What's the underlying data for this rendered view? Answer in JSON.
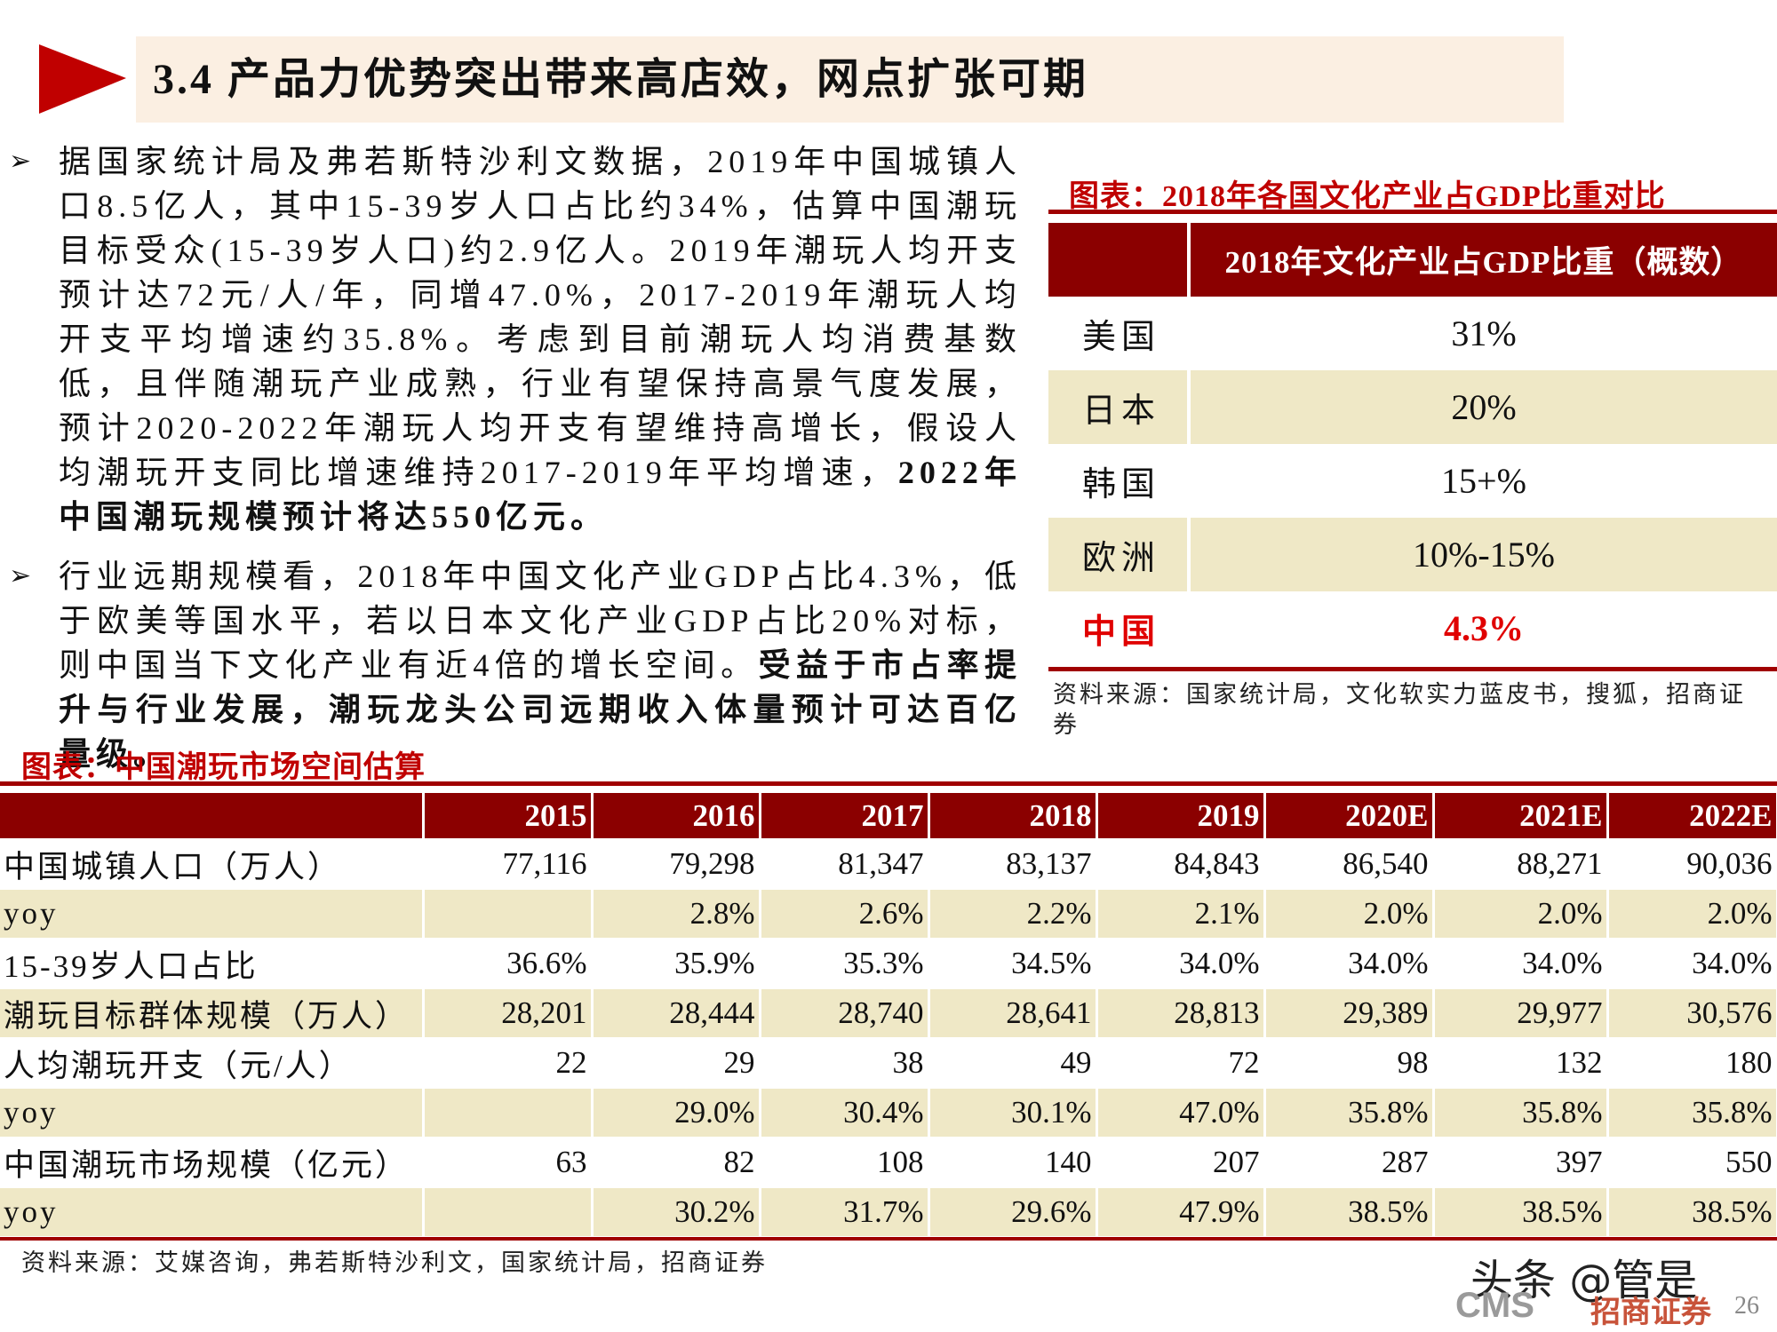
{
  "header": {
    "title": "3.4 产品力优势突出带来高店效，网点扩张可期"
  },
  "bullets": [
    {
      "text": "据国家统计局及弗若斯特沙利文数据，2019年中国城镇人口8.5亿人，其中15-39岁人口占比约34%，估算中国潮玩目标受众(15-39岁人口)约2.9亿人。2019年潮玩人均开支预计达72元/人/年，同增47.0%，2017-2019年潮玩人均开支平均增速约35.8%。考虑到目前潮玩人均消费基数低，且伴随潮玩产业成熟，行业有望保持高景气度发展，预计2020-2022年潮玩人均开支有望维持高增长，假设人均潮玩开支同比增速维持2017-2019年平均增速，",
      "emphasis": "2022年中国潮玩规模预计将达550亿元。"
    },
    {
      "text": "行业远期规模看，2018年中国文化产业GDP占比4.3%，低于欧美等国水平，若以日本文化产业GDP占比20%对标，则中国当下文化产业有近4倍的增长空间。",
      "emphasis": "受益于市占率提升与行业发展，潮玩龙头公司远期收入体量预计可达百亿量级。"
    }
  ],
  "gdp_table": {
    "title": "图表：2018年各国文化产业占GDP比重对比",
    "header": "2018年文化产业占GDP比重（概数）",
    "rows": [
      [
        "美国",
        "31%"
      ],
      [
        "日本",
        "20%"
      ],
      [
        "韩国",
        "15+%"
      ],
      [
        "欧洲",
        "10%-15%"
      ],
      [
        "中国",
        "4.3%"
      ]
    ],
    "source": "资料来源：国家统计局，文化软实力蓝皮书，搜狐，招商证券"
  },
  "market_table": {
    "title": "图表：中国潮玩市场空间估算",
    "columns": [
      "2015",
      "2016",
      "2017",
      "2018",
      "2019",
      "2020E",
      "2021E",
      "2022E"
    ],
    "rows": [
      {
        "label": "中国城镇人口（万人）",
        "cells": [
          "77,116",
          "79,298",
          "81,347",
          "83,137",
          "84,843",
          "86,540",
          "88,271",
          "90,036"
        ]
      },
      {
        "label": "yoy",
        "cells": [
          null,
          "2.8%",
          "2.6%",
          "2.2%",
          "2.1%",
          "2.0%",
          "2.0%",
          "2.0%"
        ]
      },
      {
        "label": "15-39岁人口占比",
        "cells": [
          "36.6%",
          "35.9%",
          "35.3%",
          "34.5%",
          "34.0%",
          "34.0%",
          "34.0%",
          "34.0%"
        ]
      },
      {
        "label": "潮玩目标群体规模（万人）",
        "cells": [
          "28,201",
          "28,444",
          "28,740",
          "28,641",
          "28,813",
          "29,389",
          "29,977",
          "30,576"
        ]
      },
      {
        "label": "人均潮玩开支（元/人）",
        "cells": [
          "22",
          "29",
          "38",
          "49",
          "72",
          "98",
          "132",
          "180"
        ]
      },
      {
        "label": "yoy",
        "cells": [
          null,
          "29.0%",
          "30.4%",
          "30.1%",
          "47.0%",
          "35.8%",
          "35.8%",
          "35.8%"
        ]
      },
      {
        "label": "中国潮玩市场规模（亿元）",
        "cells": [
          "63",
          "82",
          "108",
          "140",
          "207",
          "287",
          "397",
          "550"
        ]
      },
      {
        "label": "yoy",
        "cells": [
          null,
          "30.2%",
          "31.7%",
          "29.6%",
          "47.9%",
          "38.5%",
          "38.5%",
          "38.5%"
        ]
      }
    ],
    "source": "资料来源：艾媒咨询，弗若斯特沙利文，国家统计局，招商证券"
  },
  "footer": {
    "watermark": "头条 @管是",
    "logo": "CMS",
    "logo_cn": "招商证券",
    "page": "26"
  }
}
